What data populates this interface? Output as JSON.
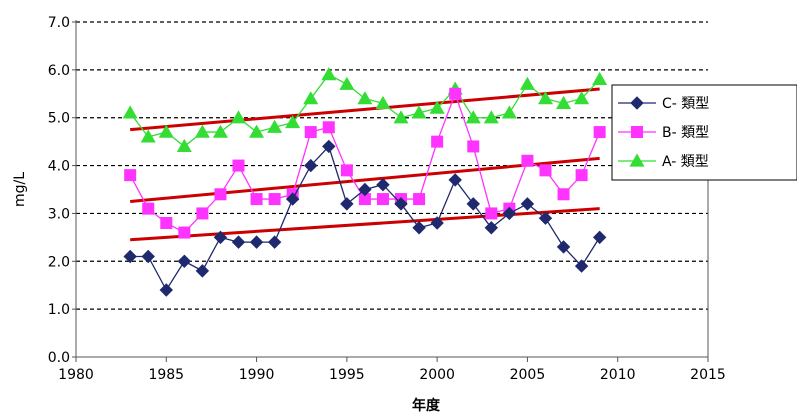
{
  "chart_data": {
    "type": "line",
    "title": "",
    "xlabel": "年度",
    "ylabel": "mg/L",
    "xlim": [
      1980,
      2015
    ],
    "ylim": [
      0.0,
      7.0
    ],
    "x_ticks": [
      1980,
      1985,
      1990,
      1995,
      2000,
      2005,
      2010,
      2015
    ],
    "y_ticks": [
      "0.0",
      "1.0",
      "2.0",
      "3.0",
      "4.0",
      "5.0",
      "6.0",
      "7.0"
    ],
    "grid": "horizontal-dashed",
    "legend_position": "right",
    "x": [
      1983,
      1984,
      1985,
      1986,
      1987,
      1988,
      1989,
      1990,
      1991,
      1992,
      1993,
      1994,
      1995,
      1996,
      1997,
      1998,
      1999,
      2000,
      2001,
      2002,
      2003,
      2004,
      2005,
      2006,
      2007,
      2008,
      2009
    ],
    "series": [
      {
        "name": "C- 類型",
        "color": "#1f2a6e",
        "marker": "diamond",
        "values": [
          2.1,
          2.1,
          1.4,
          2.0,
          1.8,
          2.5,
          2.4,
          2.4,
          2.4,
          3.3,
          4.0,
          4.4,
          3.2,
          3.5,
          3.6,
          3.2,
          2.7,
          2.8,
          3.7,
          3.2,
          2.7,
          3.0,
          3.2,
          2.9,
          2.3,
          1.9,
          2.5
        ],
        "trend": [
          2.45,
          3.1
        ]
      },
      {
        "name": "B- 類型",
        "color": "#ff33ff",
        "marker": "square",
        "values": [
          3.8,
          3.1,
          2.8,
          2.6,
          3.0,
          3.4,
          4.0,
          3.3,
          3.3,
          3.4,
          4.7,
          4.8,
          3.9,
          3.3,
          3.3,
          3.3,
          3.3,
          4.5,
          5.5,
          4.4,
          3.0,
          3.1,
          4.1,
          3.9,
          3.4,
          3.8,
          4.7
        ],
        "trend": [
          3.25,
          4.15
        ]
      },
      {
        "name": "A- 類型",
        "color": "#33dd33",
        "marker": "triangle",
        "values": [
          5.1,
          4.6,
          4.7,
          4.4,
          4.7,
          4.7,
          5.0,
          4.7,
          4.8,
          4.9,
          5.4,
          5.9,
          5.7,
          5.4,
          5.3,
          5.0,
          5.1,
          5.2,
          5.6,
          5.0,
          5.0,
          5.1,
          5.7,
          5.4,
          5.3,
          5.4,
          5.8
        ],
        "trend": [
          4.75,
          5.6
        ]
      }
    ],
    "trend_color": "#cc0000"
  }
}
